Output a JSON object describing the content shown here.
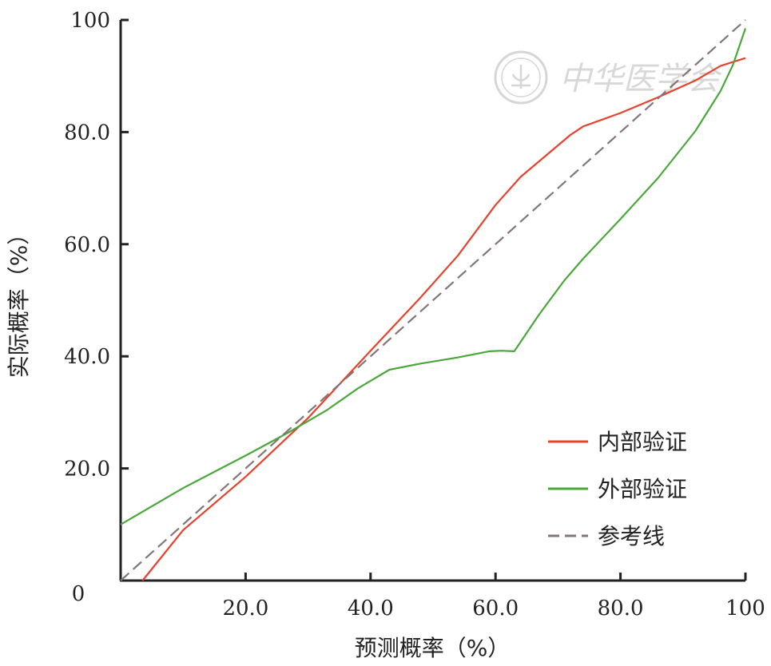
{
  "watermark": {
    "text": "中华医学会"
  },
  "chart_data": {
    "type": "line",
    "xlabel": "预测概率（%）",
    "ylabel": "实际概率（%）",
    "xlim": [
      0,
      100
    ],
    "ylim": [
      0,
      100
    ],
    "x_ticks": [
      {
        "value": 20,
        "label": "20.0"
      },
      {
        "value": 40,
        "label": "40.0"
      },
      {
        "value": 60,
        "label": "60.0"
      },
      {
        "value": 80,
        "label": "80.0"
      },
      {
        "value": 100,
        "label": "100"
      }
    ],
    "y_ticks": [
      {
        "value": 20,
        "label": "20.0"
      },
      {
        "value": 40,
        "label": "40.0"
      },
      {
        "value": 60,
        "label": "60.0"
      },
      {
        "value": 80,
        "label": "80.0"
      },
      {
        "value": 100,
        "label": "100"
      }
    ],
    "origin_label": "0",
    "grid": false,
    "legend_position": "bottom-right",
    "series": [
      {
        "name": "内部验证",
        "color": "#e8412c",
        "dash": false,
        "points": [
          [
            3.5,
            0
          ],
          [
            10,
            9
          ],
          [
            20,
            18.5
          ],
          [
            30,
            29
          ],
          [
            40,
            41
          ],
          [
            48,
            50.5
          ],
          [
            54,
            58
          ],
          [
            60,
            67
          ],
          [
            64,
            72
          ],
          [
            67,
            74.8
          ],
          [
            72,
            79.5
          ],
          [
            74,
            81
          ],
          [
            80,
            83.4
          ],
          [
            86,
            86.2
          ],
          [
            92,
            89.2
          ],
          [
            96,
            91.8
          ],
          [
            100,
            93.2
          ]
        ]
      },
      {
        "name": "外部验证",
        "color": "#4aa83b",
        "dash": false,
        "points": [
          [
            0,
            10
          ],
          [
            10,
            16.5
          ],
          [
            20,
            22.3
          ],
          [
            27,
            26.5
          ],
          [
            33,
            30.4
          ],
          [
            38,
            34.3
          ],
          [
            43,
            37.6
          ],
          [
            48,
            38.7
          ],
          [
            54,
            39.8
          ],
          [
            59,
            40.9
          ],
          [
            61,
            41
          ],
          [
            63,
            40.9
          ],
          [
            67,
            47.5
          ],
          [
            71,
            53.5
          ],
          [
            74,
            57.4
          ],
          [
            80,
            64.5
          ],
          [
            86,
            71.8
          ],
          [
            92,
            80.2
          ],
          [
            96,
            87.3
          ],
          [
            98,
            92
          ],
          [
            100,
            98.5
          ]
        ]
      },
      {
        "name": "参考线",
        "color": "#847578",
        "dash": true,
        "points": [
          [
            0,
            0
          ],
          [
            100,
            100
          ]
        ]
      }
    ]
  }
}
